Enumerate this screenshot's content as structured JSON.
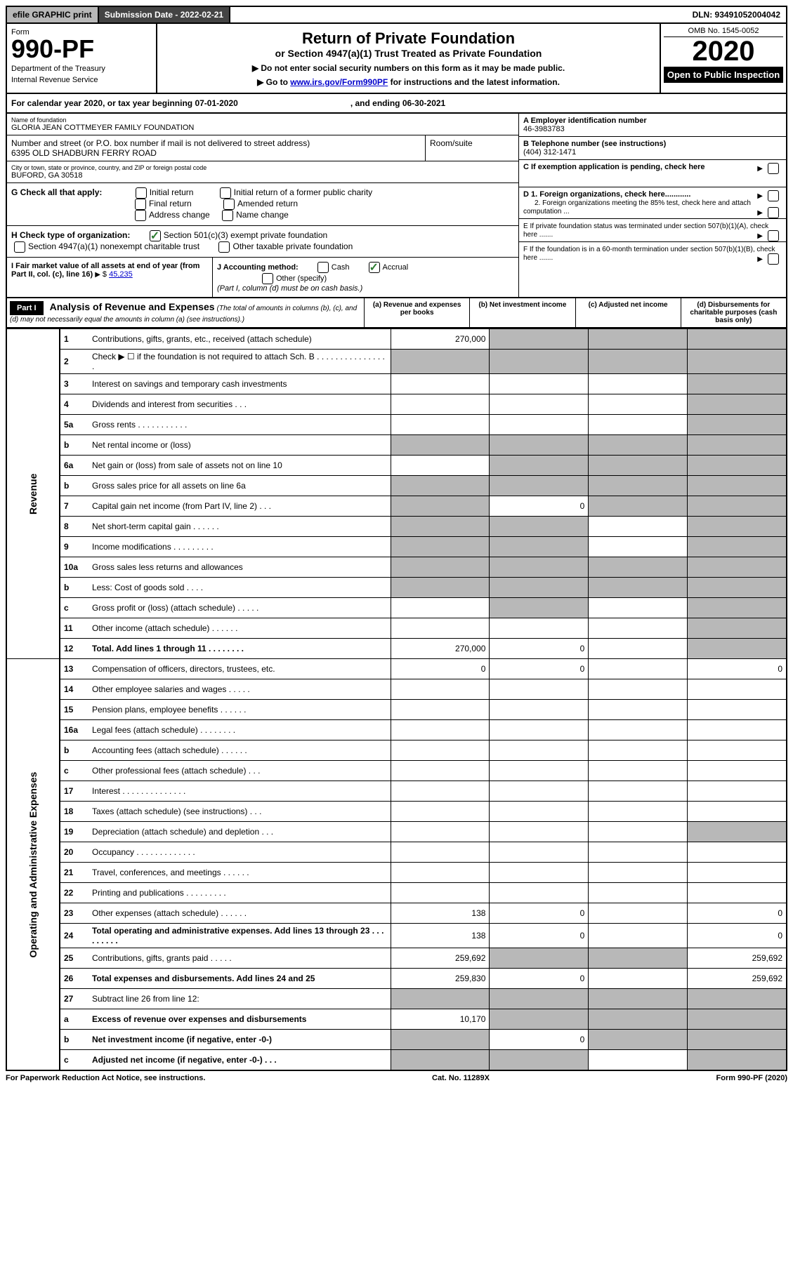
{
  "topbar": {
    "efile": "efile GRAPHIC print",
    "submission_label": "Submission Date - 2022-02-21",
    "dln": "DLN: 93491052004042"
  },
  "header": {
    "form_label": "Form",
    "form_number": "990-PF",
    "dept": "Department of the Treasury",
    "irs": "Internal Revenue Service",
    "title": "Return of Private Foundation",
    "subtitle": "or Section 4947(a)(1) Trust Treated as Private Foundation",
    "note1": "▶ Do not enter social security numbers on this form as it may be made public.",
    "note2_pre": "▶ Go to ",
    "note2_link": "www.irs.gov/Form990PF",
    "note2_post": " for instructions and the latest information.",
    "omb": "OMB No. 1545-0052",
    "year": "2020",
    "open": "Open to Public Inspection"
  },
  "calyear": {
    "text_pre": "For calendar year 2020, or tax year beginning 07-01-2020",
    "text_mid": ", and ending 06-30-2021"
  },
  "entity": {
    "name_label": "Name of foundation",
    "name": "GLORIA JEAN COTTMEYER FAMILY FOUNDATION",
    "addr_label": "Number and street (or P.O. box number if mail is not delivered to street address)",
    "addr": "6395 OLD SHADBURN FERRY ROAD",
    "room_label": "Room/suite",
    "city_label": "City or town, state or province, country, and ZIP or foreign postal code",
    "city": "BUFORD, GA  30518",
    "ein_label": "A Employer identification number",
    "ein": "46-3983783",
    "phone_label": "B Telephone number (see instructions)",
    "phone": "(404) 312-1471",
    "c_label": "C If exemption application is pending, check here",
    "d1_label": "D 1. Foreign organizations, check here............",
    "d2_label": "2. Foreign organizations meeting the 85% test, check here and attach computation ...",
    "e_label": "E  If private foundation status was terminated under section 507(b)(1)(A), check here .......",
    "f_label": "F  If the foundation is in a 60-month termination under section 507(b)(1)(B), check here .......",
    "g_label": "G Check all that apply:",
    "g_opts": [
      "Initial return",
      "Initial return of a former public charity",
      "Final return",
      "Amended return",
      "Address change",
      "Name change"
    ],
    "h_label": "H Check type of organization:",
    "h_opt1": "Section 501(c)(3) exempt private foundation",
    "h_opt2": "Section 4947(a)(1) nonexempt charitable trust",
    "h_opt3": "Other taxable private foundation",
    "i_label": "I Fair market value of all assets at end of year (from Part II, col. (c), line 16)",
    "i_value": "45,235",
    "j_label": "J Accounting method:",
    "j_cash": "Cash",
    "j_accrual": "Accrual",
    "j_other": "Other (specify)",
    "j_note": "(Part I, column (d) must be on cash basis.)"
  },
  "part1": {
    "label": "Part I",
    "title": "Analysis of Revenue and Expenses",
    "note": "(The total of amounts in columns (b), (c), and (d) may not necessarily equal the amounts in column (a) (see instructions).)",
    "col_a": "(a)   Revenue and expenses per books",
    "col_b": "(b)   Net investment income",
    "col_c": "(c)   Adjusted net income",
    "col_d": "(d)  Disbursements for charitable purposes (cash basis only)"
  },
  "sections": {
    "revenue": "Revenue",
    "opex": "Operating and Administrative Expenses"
  },
  "rows": [
    {
      "n": "1",
      "d": "Contributions, gifts, grants, etc., received (attach schedule)",
      "a": "270,000",
      "shade_b": true,
      "shade_c": true,
      "shade_d": true
    },
    {
      "n": "2",
      "d": "Check ▶ ☐ if the foundation is not required to attach Sch. B   .  .  .  .  .  .  .  .  .  .  .  .  .  .  .  .",
      "shade_a": true,
      "shade_b": true,
      "shade_c": true,
      "shade_d": true
    },
    {
      "n": "3",
      "d": "Interest on savings and temporary cash investments",
      "shade_d": true
    },
    {
      "n": "4",
      "d": "Dividends and interest from securities    .    .    .",
      "shade_d": true
    },
    {
      "n": "5a",
      "d": "Gross rents     .    .    .    .    .    .    .    .    .    .    .",
      "shade_d": true
    },
    {
      "n": "b",
      "d": "Net rental income or (loss)",
      "shade_a": true,
      "shade_b": true,
      "shade_c": true,
      "shade_d": true
    },
    {
      "n": "6a",
      "d": "Net gain or (loss) from sale of assets not on line 10",
      "shade_b": true,
      "shade_c": true,
      "shade_d": true
    },
    {
      "n": "b",
      "d": "Gross sales price for all assets on line 6a",
      "shade_a": true,
      "shade_b": true,
      "shade_c": true,
      "shade_d": true
    },
    {
      "n": "7",
      "d": "Capital gain net income (from Part IV, line 2)    .    .    .",
      "shade_a": true,
      "b": "0",
      "shade_c": true,
      "shade_d": true
    },
    {
      "n": "8",
      "d": "Net short-term capital gain   .   .   .   .   .   .   ",
      "shade_a": true,
      "shade_b": true,
      "shade_d": true
    },
    {
      "n": "9",
      "d": "Income modifications  .   .   .   .   .   .   .   .   .",
      "shade_a": true,
      "shade_b": true,
      "shade_d": true
    },
    {
      "n": "10a",
      "d": "Gross sales less returns and allowances",
      "shade_a": true,
      "shade_b": true,
      "shade_c": true,
      "shade_d": true
    },
    {
      "n": "b",
      "d": "Less: Cost of goods sold     .    .    .    .",
      "shade_a": true,
      "shade_b": true,
      "shade_c": true,
      "shade_d": true
    },
    {
      "n": "c",
      "d": "Gross profit or (loss) (attach schedule)    .    .    .    .    .",
      "shade_b": true,
      "shade_d": true
    },
    {
      "n": "11",
      "d": "Other income (attach schedule)    .    .    .    .    .    .",
      "shade_d": true
    },
    {
      "n": "12",
      "d": "Total. Add lines 1 through 11   .   .   .   .   .   .   .   .",
      "bold": true,
      "a": "270,000",
      "b": "0",
      "shade_d": true
    },
    {
      "n": "13",
      "d": "Compensation of officers, directors, trustees, etc.",
      "a": "0",
      "b": "0",
      "dd": "0"
    },
    {
      "n": "14",
      "d": "Other employee salaries and wages    .    .    .    .    ."
    },
    {
      "n": "15",
      "d": "Pension plans, employee benefits   .   .   .   .   .   ."
    },
    {
      "n": "16a",
      "d": "Legal fees (attach schedule)  .   .   .   .   .   .   .   ."
    },
    {
      "n": "b",
      "d": "Accounting fees (attach schedule)  .   .   .   .   .   ."
    },
    {
      "n": "c",
      "d": "Other professional fees (attach schedule)    .    .    ."
    },
    {
      "n": "17",
      "d": "Interest  .   .   .   .   .   .   .   .   .   .   .   .   .   ."
    },
    {
      "n": "18",
      "d": "Taxes (attach schedule) (see instructions)    .    .    ."
    },
    {
      "n": "19",
      "d": "Depreciation (attach schedule) and depletion    .    .    .",
      "shade_d": true
    },
    {
      "n": "20",
      "d": "Occupancy  .   .   .   .   .   .   .   .   .   .   .   .   ."
    },
    {
      "n": "21",
      "d": "Travel, conferences, and meetings  .   .   .   .   .   ."
    },
    {
      "n": "22",
      "d": "Printing and publications  .   .   .   .   .   .   .   .   ."
    },
    {
      "n": "23",
      "d": "Other expenses (attach schedule)  .   .   .   .   .   .",
      "a": "138",
      "b": "0",
      "dd": "0"
    },
    {
      "n": "24",
      "d": "Total operating and administrative expenses. Add lines 13 through 23   .   .   .   .   .   .   .   .   .",
      "bold": true,
      "a": "138",
      "b": "0",
      "dd": "0"
    },
    {
      "n": "25",
      "d": "Contributions, gifts, grants paid     .    .    .    .    .",
      "a": "259,692",
      "shade_b": true,
      "shade_c": true,
      "dd": "259,692"
    },
    {
      "n": "26",
      "d": "Total expenses and disbursements. Add lines 24 and 25",
      "bold": true,
      "a": "259,830",
      "b": "0",
      "dd": "259,692"
    },
    {
      "n": "27",
      "d": "Subtract line 26 from line 12:",
      "shade_a": true,
      "shade_b": true,
      "shade_c": true,
      "shade_d": true
    },
    {
      "n": "a",
      "d": "Excess of revenue over expenses and disbursements",
      "bold": true,
      "a": "10,170",
      "shade_b": true,
      "shade_c": true,
      "shade_d": true
    },
    {
      "n": "b",
      "d": "Net investment income (if negative, enter -0-)",
      "bold": true,
      "shade_a": true,
      "b": "0",
      "shade_c": true,
      "shade_d": true
    },
    {
      "n": "c",
      "d": "Adjusted net income (if negative, enter -0-)   .   .   .",
      "bold": true,
      "shade_a": true,
      "shade_b": true,
      "shade_d": true
    }
  ],
  "footer": {
    "left": "For Paperwork Reduction Act Notice, see instructions.",
    "mid": "Cat. No. 11289X",
    "right": "Form 990-PF (2020)"
  }
}
